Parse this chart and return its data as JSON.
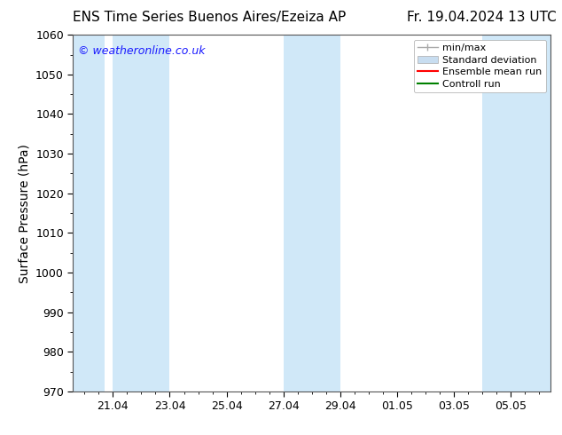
{
  "title_left": "ENS Time Series Buenos Aires/Ezeiza AP",
  "title_right": "Fr. 19.04.2024 13 UTC",
  "ylabel": "Surface Pressure (hPa)",
  "ylim": [
    970,
    1060
  ],
  "yticks": [
    970,
    980,
    990,
    1000,
    1010,
    1020,
    1030,
    1040,
    1050,
    1060
  ],
  "xtick_labels": [
    "21.04",
    "23.04",
    "25.04",
    "27.04",
    "29.04",
    "01.05",
    "03.05",
    "05.05"
  ],
  "watermark": "© weatheronline.co.uk",
  "watermark_color": "#1a1aff",
  "bg_color": "#ffffff",
  "plot_bg_color": "#ffffff",
  "shaded_band_color": "#d0e8f8",
  "legend_labels": [
    "min/max",
    "Standard deviation",
    "Ensemble mean run",
    "Controll run"
  ],
  "legend_colors": [
    "#999999",
    "#c0d8f0",
    "#ff0000",
    "#008000"
  ],
  "title_fontsize": 11,
  "tick_fontsize": 9,
  "ylabel_fontsize": 10,
  "watermark_fontsize": 9,
  "legend_fontsize": 8
}
